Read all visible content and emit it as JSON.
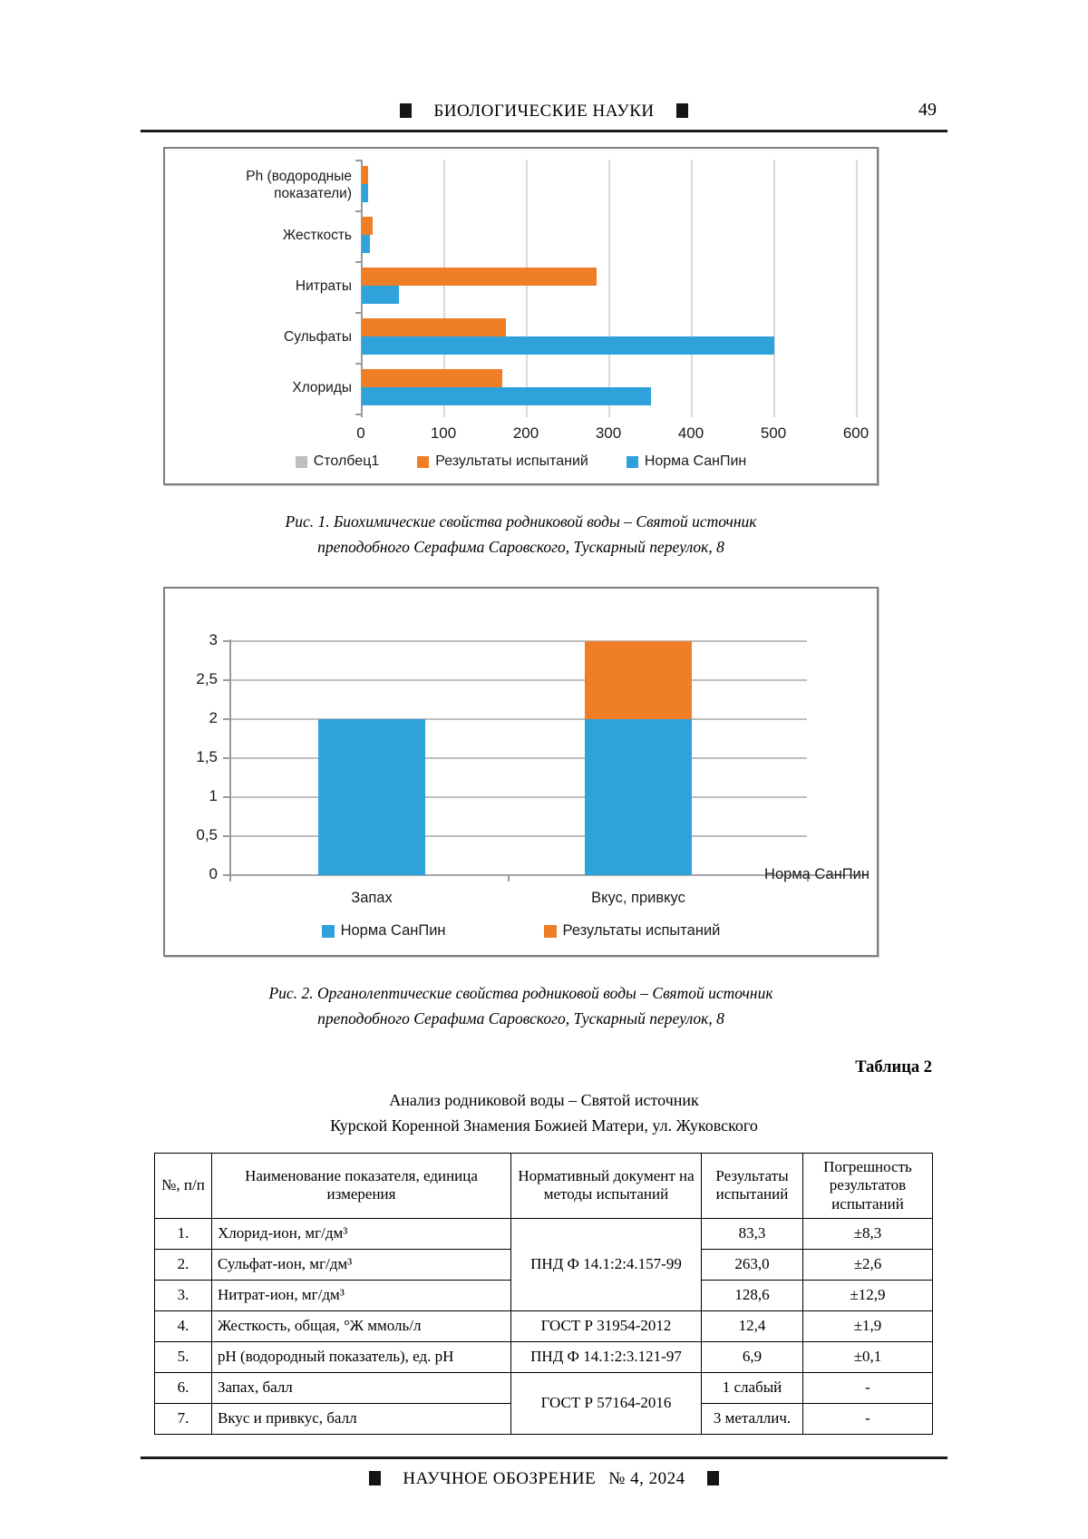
{
  "page": {
    "section_title": "БИОЛОГИЧЕСКИЕ НАУКИ",
    "number": "49",
    "footer": {
      "journal": "НАУЧНОЕ ОБОЗРЕНИЕ",
      "issue": "№ 4,  2024"
    }
  },
  "figure1": {
    "caption": [
      "Рис. 1. Биохимические свойства родниковой воды – Святой источник",
      "преподобного Серафима Саровского, Тускарный переулок, 8"
    ]
  },
  "figure2": {
    "caption": [
      "Рис. 2. Органолептические свойства родниковой воды – Святой источник",
      "преподобного Серафима Саровского, Тускарный переулок, 8"
    ]
  },
  "chart_data": [
    {
      "type": "bar",
      "orientation": "horizontal",
      "categories": [
        "Ph (водородные показатели)",
        "Жесткость",
        "Нитраты",
        "Сульфаты",
        "Хлориды"
      ],
      "series": [
        {
          "name": "Столбец1",
          "color": "#BFBFBF",
          "values": [
            0,
            0,
            0,
            0,
            0
          ]
        },
        {
          "name": "Результаты испытаний",
          "color": "#F07E27",
          "values": [
            8,
            13,
            285,
            175,
            170
          ]
        },
        {
          "name": "Норма СанПин",
          "color": "#2FA2DB",
          "values": [
            8,
            10,
            45,
            500,
            350
          ]
        }
      ],
      "xlim": [
        0,
        600
      ],
      "xticks": [
        0,
        100,
        200,
        300,
        400,
        500,
        600
      ],
      "grid": "vertical",
      "legend_position": "bottom"
    },
    {
      "type": "bar",
      "orientation": "vertical-stacked",
      "categories": [
        "Запах",
        "Вкус, привкус"
      ],
      "series": [
        {
          "name": "Норма СанПин",
          "color": "#2FA2DB",
          "values": [
            2,
            2
          ]
        },
        {
          "name": "Результаты испытаний",
          "color": "#F07E27",
          "values": [
            0,
            1
          ]
        }
      ],
      "ylim": [
        0,
        3
      ],
      "ytick_labels": [
        "0",
        "0,5",
        "1",
        "1,5",
        "2",
        "2,5",
        "3"
      ],
      "ytick_step": 0.5,
      "right_axis_label": "Норма СанПин",
      "grid": "horizontal",
      "legend_position": "bottom"
    }
  ],
  "table": {
    "label": "Таблица 2",
    "title": [
      "Анализ родниковой воды – Святой источник",
      "Курской Коренной Знамения Божией Матери, ул. Жуковского"
    ],
    "headers": [
      "№, п/п",
      "Наименование показателя, единица измерения",
      "Нормативный документ на методы испытаний",
      "Результаты испытаний",
      "Погрешность результатов испытаний"
    ],
    "rows": [
      {
        "num": "1.",
        "name": "Хлорид-ион, мг/дм³",
        "doc": "ПНД Ф 14.1:2:4.157-99",
        "doc_rowspan": 3,
        "result": "83,3",
        "error": "±8,3"
      },
      {
        "num": "2.",
        "name": "Сульфат-ион, мг/дм³",
        "result": "263,0",
        "error": "±2,6"
      },
      {
        "num": "3.",
        "name": "Нитрат-ион, мг/дм³",
        "result": "128,6",
        "error": "±12,9"
      },
      {
        "num": "4.",
        "name": "Жесткость, общая, °Ж ммоль/л",
        "doc": "ГОСТ Р 31954-2012",
        "doc_rowspan": 1,
        "result": "12,4",
        "error": "±1,9"
      },
      {
        "num": "5.",
        "name": "рН (водородный показатель), ед. рН",
        "doc": "ПНД Ф 14.1:2:3.121-97",
        "doc_rowspan": 1,
        "result": "6,9",
        "error": "±0,1"
      },
      {
        "num": "6.",
        "name": "Запах, балл",
        "doc": "ГОСТ Р 57164-2016",
        "doc_rowspan": 2,
        "result": "1 слабый",
        "error": "-"
      },
      {
        "num": "7.",
        "name": "Вкус и привкус, балл",
        "result": "3 металлич.",
        "error": "-"
      }
    ]
  }
}
